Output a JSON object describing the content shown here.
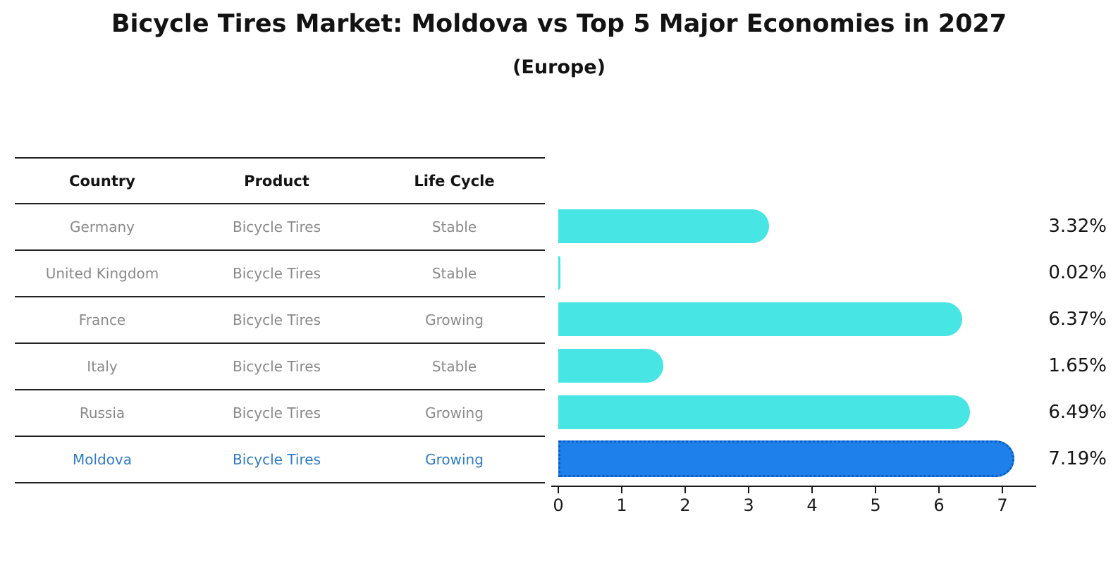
{
  "title": "Bicycle Tires Market: Moldova vs Top 5 Major Economies in 2027",
  "subtitle": "(Europe)",
  "table": {
    "headers": [
      "Country",
      "Product",
      "Life Cycle"
    ],
    "rows": [
      {
        "country": "Germany",
        "product": "Bicycle Tires",
        "life_cycle": "Stable",
        "value": 3.32,
        "share_label": "3.32%",
        "highlight": false
      },
      {
        "country": "United Kingdom",
        "product": "Bicycle Tires",
        "life_cycle": "Stable",
        "value": 0.02,
        "share_label": "0.02%",
        "highlight": false
      },
      {
        "country": "France",
        "product": "Bicycle Tires",
        "life_cycle": "Growing",
        "value": 6.37,
        "share_label": "6.37%",
        "highlight": false
      },
      {
        "country": "Italy",
        "product": "Bicycle Tires",
        "life_cycle": "Stable",
        "value": 1.65,
        "share_label": "1.65%",
        "highlight": false
      },
      {
        "country": "Russia",
        "product": "Bicycle Tires",
        "life_cycle": "Growing",
        "value": 6.49,
        "share_label": "6.49%",
        "highlight": false
      },
      {
        "country": "Moldova",
        "product": "Bicycle Tires",
        "life_cycle": "Growing",
        "value": 7.19,
        "share_label": "7.19%",
        "highlight": true
      }
    ]
  },
  "chart_data": {
    "type": "bar",
    "orientation": "horizontal",
    "title": "Bicycle Tires Market: Moldova vs Top 5 Major Economies in 2027",
    "subtitle": "(Europe)",
    "categories": [
      "Germany",
      "United Kingdom",
      "France",
      "Italy",
      "Russia",
      "Moldova"
    ],
    "values": [
      3.32,
      0.02,
      6.37,
      1.65,
      6.49,
      7.19
    ],
    "value_labels": [
      "3.32%",
      "0.02%",
      "6.37%",
      "1.65%",
      "6.49%",
      "7.19%"
    ],
    "xticks": [
      0,
      1,
      2,
      3,
      4,
      5,
      6,
      7
    ],
    "xlim": [
      0,
      7.5
    ],
    "xlabel": "",
    "ylabel": "",
    "grid": false,
    "legend": false,
    "bar_color": "#48e5e5",
    "highlight_color": "#1e80eb",
    "highlight_border_color": "#0e5bbe",
    "highlight_category": "Moldova",
    "highlight_text_color": "#2e7bc6"
  }
}
